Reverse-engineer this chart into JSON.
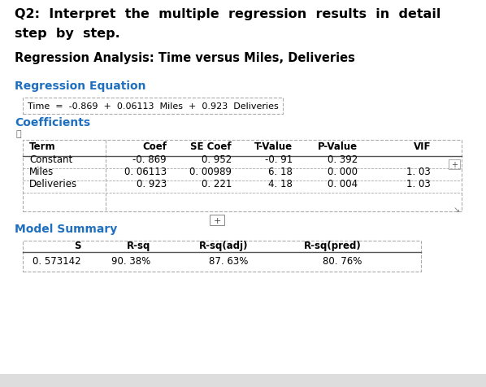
{
  "title_line1": "Q2:  Interpret  the  multiple  regression  results  in  detail",
  "title_line2": "step  by  step.",
  "subtitle": "Regression Analysis: Time versus Miles, Deliveries",
  "section_regression": "Regression Equation",
  "equation": "Time  =  -0.869  +  0.06113  Miles  +  0.923  Deliveries",
  "section_coefficients": "Coefficients",
  "coef_headers": [
    "Term",
    "Coef",
    "SE Coef",
    "T-Value",
    "P-Value",
    "VIF"
  ],
  "coef_rows": [
    [
      "Constant",
      "-0. 869",
      "0. 952",
      "-0. 91",
      "0. 392",
      ""
    ],
    [
      "Miles",
      "0. 06113",
      "0. 00989",
      "6. 18",
      "0. 000",
      "1. 03"
    ],
    [
      "Deliveries",
      "0. 923",
      "0. 221",
      "4. 18",
      "0. 004",
      "1. 03"
    ]
  ],
  "section_model": "Model Summary",
  "model_headers": [
    "S",
    "R-sq",
    "R-sq(adj)",
    "R-sq(pred)"
  ],
  "model_row": [
    "0. 573142",
    "90. 38%",
    "87. 63%",
    "80. 76%"
  ],
  "bg_color": "#ffffff",
  "blue_color": "#1F6FBF",
  "text_color": "#000000",
  "mono_color": "#000000",
  "table_line_color": "#aaaaaa",
  "title_fontsize": 11.5,
  "subtitle_fontsize": 10.5,
  "section_fontsize": 10,
  "body_fontsize": 8.5
}
